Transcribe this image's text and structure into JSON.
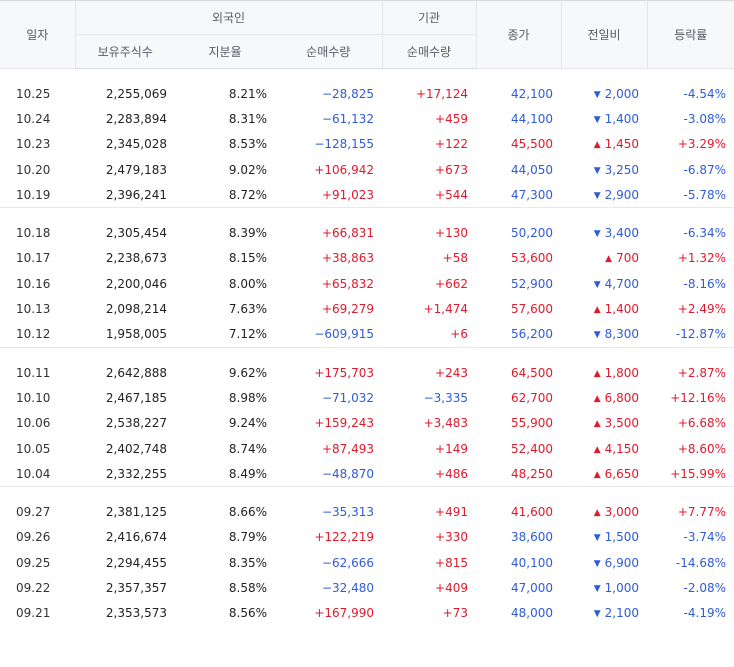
{
  "header": {
    "date": "일자",
    "foreign": "외국인",
    "institution": "기관",
    "close": "종가",
    "change": "전일비",
    "rate": "등락률",
    "holdings": "보유주식수",
    "share_ratio": "지분율",
    "foreign_net": "순매수량",
    "inst_net": "순매수량"
  },
  "colors": {
    "up": "#e1192c",
    "down": "#2f5cd6"
  },
  "groups": [
    [
      {
        "date": "10.25",
        "holdings": "2,255,069",
        "ratio": "8.21%",
        "foreign_net": "−28,825",
        "inst_net": "+17,124",
        "close": "42,100",
        "change": "2,000",
        "rate": "-4.54%",
        "dir": "down",
        "fdir": "down",
        "idir": "up"
      },
      {
        "date": "10.24",
        "holdings": "2,283,894",
        "ratio": "8.31%",
        "foreign_net": "−61,132",
        "inst_net": "+459",
        "close": "44,100",
        "change": "1,400",
        "rate": "-3.08%",
        "dir": "down",
        "fdir": "down",
        "idir": "up"
      },
      {
        "date": "10.23",
        "holdings": "2,345,028",
        "ratio": "8.53%",
        "foreign_net": "−128,155",
        "inst_net": "+122",
        "close": "45,500",
        "change": "1,450",
        "rate": "+3.29%",
        "dir": "up",
        "fdir": "down",
        "idir": "up"
      },
      {
        "date": "10.20",
        "holdings": "2,479,183",
        "ratio": "9.02%",
        "foreign_net": "+106,942",
        "inst_net": "+673",
        "close": "44,050",
        "change": "3,250",
        "rate": "-6.87%",
        "dir": "down",
        "fdir": "up",
        "idir": "up"
      },
      {
        "date": "10.19",
        "holdings": "2,396,241",
        "ratio": "8.72%",
        "foreign_net": "+91,023",
        "inst_net": "+544",
        "close": "47,300",
        "change": "2,900",
        "rate": "-5.78%",
        "dir": "down",
        "fdir": "up",
        "idir": "up"
      }
    ],
    [
      {
        "date": "10.18",
        "holdings": "2,305,454",
        "ratio": "8.39%",
        "foreign_net": "+66,831",
        "inst_net": "+130",
        "close": "50,200",
        "change": "3,400",
        "rate": "-6.34%",
        "dir": "down",
        "fdir": "up",
        "idir": "up"
      },
      {
        "date": "10.17",
        "holdings": "2,238,673",
        "ratio": "8.15%",
        "foreign_net": "+38,863",
        "inst_net": "+58",
        "close": "53,600",
        "change": "700",
        "rate": "+1.32%",
        "dir": "up",
        "fdir": "up",
        "idir": "up"
      },
      {
        "date": "10.16",
        "holdings": "2,200,046",
        "ratio": "8.00%",
        "foreign_net": "+65,832",
        "inst_net": "+662",
        "close": "52,900",
        "change": "4,700",
        "rate": "-8.16%",
        "dir": "down",
        "fdir": "up",
        "idir": "up"
      },
      {
        "date": "10.13",
        "holdings": "2,098,214",
        "ratio": "7.63%",
        "foreign_net": "+69,279",
        "inst_net": "+1,474",
        "close": "57,600",
        "change": "1,400",
        "rate": "+2.49%",
        "dir": "up",
        "fdir": "up",
        "idir": "up"
      },
      {
        "date": "10.12",
        "holdings": "1,958,005",
        "ratio": "7.12%",
        "foreign_net": "−609,915",
        "inst_net": "+6",
        "close": "56,200",
        "change": "8,300",
        "rate": "-12.87%",
        "dir": "down",
        "fdir": "down",
        "idir": "up"
      }
    ],
    [
      {
        "date": "10.11",
        "holdings": "2,642,888",
        "ratio": "9.62%",
        "foreign_net": "+175,703",
        "inst_net": "+243",
        "close": "64,500",
        "change": "1,800",
        "rate": "+2.87%",
        "dir": "up",
        "fdir": "up",
        "idir": "up"
      },
      {
        "date": "10.10",
        "holdings": "2,467,185",
        "ratio": "8.98%",
        "foreign_net": "−71,032",
        "inst_net": "−3,335",
        "close": "62,700",
        "change": "6,800",
        "rate": "+12.16%",
        "dir": "up",
        "fdir": "down",
        "idir": "down"
      },
      {
        "date": "10.06",
        "holdings": "2,538,227",
        "ratio": "9.24%",
        "foreign_net": "+159,243",
        "inst_net": "+3,483",
        "close": "55,900",
        "change": "3,500",
        "rate": "+6.68%",
        "dir": "up",
        "fdir": "up",
        "idir": "up"
      },
      {
        "date": "10.05",
        "holdings": "2,402,748",
        "ratio": "8.74%",
        "foreign_net": "+87,493",
        "inst_net": "+149",
        "close": "52,400",
        "change": "4,150",
        "rate": "+8.60%",
        "dir": "up",
        "fdir": "up",
        "idir": "up"
      },
      {
        "date": "10.04",
        "holdings": "2,332,255",
        "ratio": "8.49%",
        "foreign_net": "−48,870",
        "inst_net": "+486",
        "close": "48,250",
        "change": "6,650",
        "rate": "+15.99%",
        "dir": "up",
        "fdir": "down",
        "idir": "up"
      }
    ],
    [
      {
        "date": "09.27",
        "holdings": "2,381,125",
        "ratio": "8.66%",
        "foreign_net": "−35,313",
        "inst_net": "+491",
        "close": "41,600",
        "change": "3,000",
        "rate": "+7.77%",
        "dir": "up",
        "fdir": "down",
        "idir": "up"
      },
      {
        "date": "09.26",
        "holdings": "2,416,674",
        "ratio": "8.79%",
        "foreign_net": "+122,219",
        "inst_net": "+330",
        "close": "38,600",
        "change": "1,500",
        "rate": "-3.74%",
        "dir": "down",
        "fdir": "up",
        "idir": "up"
      },
      {
        "date": "09.25",
        "holdings": "2,294,455",
        "ratio": "8.35%",
        "foreign_net": "−62,666",
        "inst_net": "+815",
        "close": "40,100",
        "change": "6,900",
        "rate": "-14.68%",
        "dir": "down",
        "fdir": "down",
        "idir": "up"
      },
      {
        "date": "09.22",
        "holdings": "2,357,357",
        "ratio": "8.58%",
        "foreign_net": "−32,480",
        "inst_net": "+409",
        "close": "47,000",
        "change": "1,000",
        "rate": "-2.08%",
        "dir": "down",
        "fdir": "down",
        "idir": "up"
      },
      {
        "date": "09.21",
        "holdings": "2,353,573",
        "ratio": "8.56%",
        "foreign_net": "+167,990",
        "inst_net": "+73",
        "close": "48,000",
        "change": "2,100",
        "rate": "-4.19%",
        "dir": "down",
        "fdir": "up",
        "idir": "up"
      }
    ]
  ]
}
